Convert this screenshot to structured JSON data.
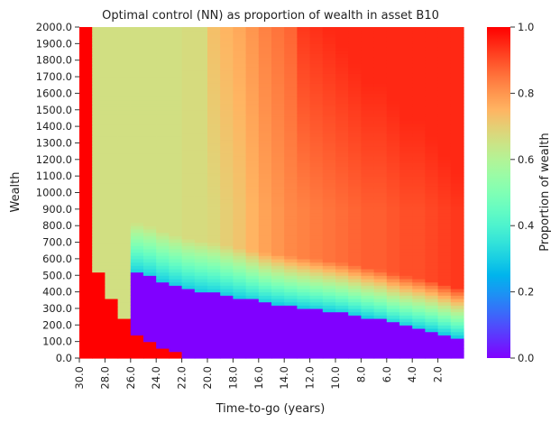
{
  "chart_data": {
    "type": "heatmap",
    "title": "Optimal control (NN) as proportion of wealth in asset B10",
    "xlabel": "Time-to-go (years)",
    "ylabel": "Wealth",
    "colorbar_label": "Proportion of wealth",
    "colormap": "rainbow",
    "x_range": [
      30,
      0
    ],
    "x_step": 1,
    "x_tick_labels": [
      "30.0",
      "28.0",
      "26.0",
      "24.0",
      "22.0",
      "20.0",
      "18.0",
      "16.0",
      "14.0",
      "12.0",
      "10.0",
      "8.0",
      "6.0",
      "4.0",
      "2.0"
    ],
    "y_range": [
      0,
      2000
    ],
    "y_tick_labels": [
      "0.0",
      "100.0",
      "200.0",
      "300.0",
      "400.0",
      "500.0",
      "600.0",
      "700.0",
      "800.0",
      "900.0",
      "1000.0",
      "1100.0",
      "1200.0",
      "1300.0",
      "1400.0",
      "1500.0",
      "1600.0",
      "1700.0",
      "1800.0",
      "1900.0",
      "2000.0"
    ],
    "color_range": [
      0,
      1
    ],
    "colorbar_tick_labels": [
      "0.0",
      "0.2",
      "0.4",
      "0.6",
      "0.8",
      "1.0"
    ],
    "columns": [
      {
        "t": 30,
        "low_until": 960,
        "low_val": 1.0,
        "upper_val": 1.0
      },
      {
        "t": 29,
        "low_until": 520,
        "low_val": 1.0,
        "upper_val": 0.66
      },
      {
        "t": 28,
        "low_until": 360,
        "low_val": 1.0,
        "upper_val": 0.66
      },
      {
        "t": 27,
        "low_until": 240,
        "low_val": 1.0,
        "upper_val": 0.66
      },
      {
        "t": 26,
        "low_until": 150,
        "low_val": 1.0,
        "upper_val": 0.66,
        "purple_until": 520
      },
      {
        "t": 25,
        "low_until": 110,
        "low_val": 1.0,
        "upper_val": 0.66,
        "purple_until": 500
      },
      {
        "t": 24,
        "low_until": 70,
        "low_val": 1.0,
        "upper_val": 0.66,
        "purple_until": 470
      },
      {
        "t": 23,
        "low_until": 40,
        "low_val": 1.0,
        "upper_val": 0.66,
        "purple_until": 445
      },
      {
        "t": 22,
        "low_until": 10,
        "low_val": 1.0,
        "upper_val": 0.67,
        "purple_until": 425
      },
      {
        "t": 21,
        "low_until": 0,
        "low_val": 1.0,
        "upper_val": 0.67,
        "purple_until": 410
      },
      {
        "t": 20,
        "low_until": 0,
        "low_val": 1.0,
        "upper_val": 0.68,
        "purple_until": 400
      },
      {
        "t": 19,
        "low_until": 0,
        "low_val": 1.0,
        "upper_val": 0.7,
        "purple_until": 385
      },
      {
        "t": 18,
        "low_until": 0,
        "low_val": 1.0,
        "upper_val": 0.72,
        "purple_until": 370
      },
      {
        "t": 17,
        "low_until": 0,
        "low_val": 1.0,
        "upper_val": 0.75,
        "purple_until": 355
      },
      {
        "t": 16,
        "low_until": 0,
        "low_val": 1.0,
        "upper_val": 0.78,
        "purple_until": 340
      },
      {
        "t": 15,
        "low_until": 0,
        "low_val": 1.0,
        "upper_val": 0.8,
        "purple_until": 330
      },
      {
        "t": 14,
        "low_until": 0,
        "low_val": 1.0,
        "upper_val": 0.82,
        "purple_until": 320
      },
      {
        "t": 13,
        "low_until": 0,
        "low_val": 1.0,
        "upper_val": 0.83,
        "purple_until": 310
      },
      {
        "t": 12,
        "low_until": 0,
        "low_val": 1.0,
        "upper_val": 0.84,
        "purple_until": 300
      },
      {
        "t": 11,
        "low_until": 0,
        "low_val": 1.0,
        "upper_val": 0.85,
        "purple_until": 290
      },
      {
        "t": 10,
        "low_until": 0,
        "low_val": 1.0,
        "upper_val": 0.86,
        "purple_until": 280
      },
      {
        "t": 9,
        "low_until": 0,
        "low_val": 1.0,
        "upper_val": 0.87,
        "purple_until": 265
      },
      {
        "t": 8,
        "low_until": 0,
        "low_val": 1.0,
        "upper_val": 0.88,
        "purple_until": 250
      },
      {
        "t": 7,
        "low_until": 0,
        "low_val": 1.0,
        "upper_val": 0.88,
        "purple_until": 235
      },
      {
        "t": 6,
        "low_until": 0,
        "low_val": 1.0,
        "upper_val": 0.89,
        "purple_until": 215
      },
      {
        "t": 5,
        "low_until": 0,
        "low_val": 1.0,
        "upper_val": 0.9,
        "purple_until": 200
      },
      {
        "t": 4,
        "low_until": 0,
        "low_val": 1.0,
        "upper_val": 0.9,
        "purple_until": 185
      },
      {
        "t": 3,
        "low_until": 0,
        "low_val": 1.0,
        "upper_val": 0.91,
        "purple_until": 170
      },
      {
        "t": 2,
        "low_until": 0,
        "low_val": 1.0,
        "upper_val": 0.92,
        "purple_until": 150
      },
      {
        "t": 1,
        "low_until": 0,
        "low_val": 1.0,
        "upper_val": 0.93,
        "purple_until": 130
      }
    ]
  }
}
